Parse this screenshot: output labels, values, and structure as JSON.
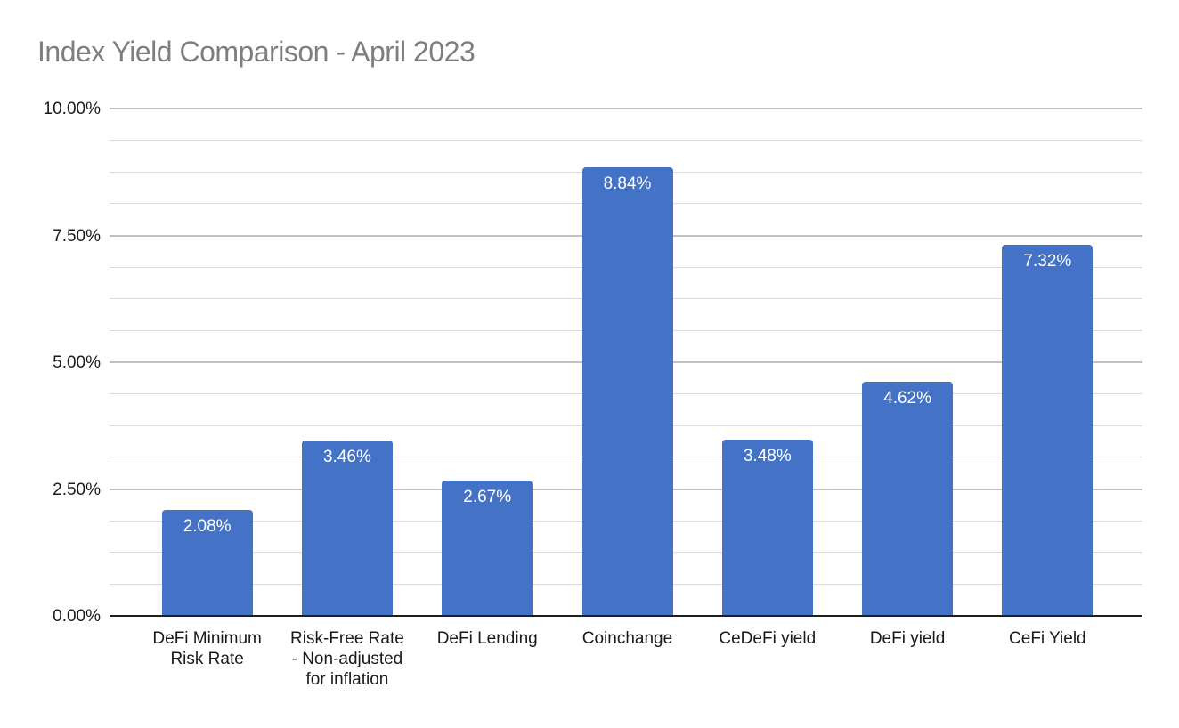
{
  "title": "Index Yield Comparison - April 2023",
  "colors": {
    "bar": "#4472c6",
    "title_text": "#7e7e7e",
    "axis_text": "#1a1a1a",
    "data_label_text": "#ffffff",
    "axis_line": "#1f1f1f",
    "major_gridline": "#c2c2c2",
    "minor_gridline": "#dbdbdb",
    "background": "#ffffff"
  },
  "chart_data": {
    "type": "bar",
    "title": "Index Yield Comparison - April 2023",
    "categories": [
      "DeFi Minimum\nRisk Rate",
      "Risk-Free Rate\n- Non-adjusted\nfor inflation",
      "DeFi Lending",
      "Coinchange",
      "CeDeFi yield",
      "DeFi yield",
      "CeFi Yield"
    ],
    "values": [
      2.08,
      3.46,
      2.67,
      8.84,
      3.48,
      4.62,
      7.32
    ],
    "data_labels": [
      "2.08%",
      "3.46%",
      "2.67%",
      "8.84%",
      "3.48%",
      "4.62%",
      "7.32%"
    ],
    "xlabel": "",
    "ylabel": "",
    "y_ticks": [
      "0.00%",
      "2.50%",
      "5.00%",
      "7.50%",
      "10.00%"
    ],
    "y_tick_values": [
      0,
      2.5,
      5,
      7.5,
      10
    ],
    "ylim": [
      0,
      10
    ],
    "y_major_step": 2.5,
    "y_minor_step": 0.625,
    "grid": true,
    "legend_position": "none",
    "data_labels_position": "inside-top",
    "bar_color": "#4472c6"
  }
}
